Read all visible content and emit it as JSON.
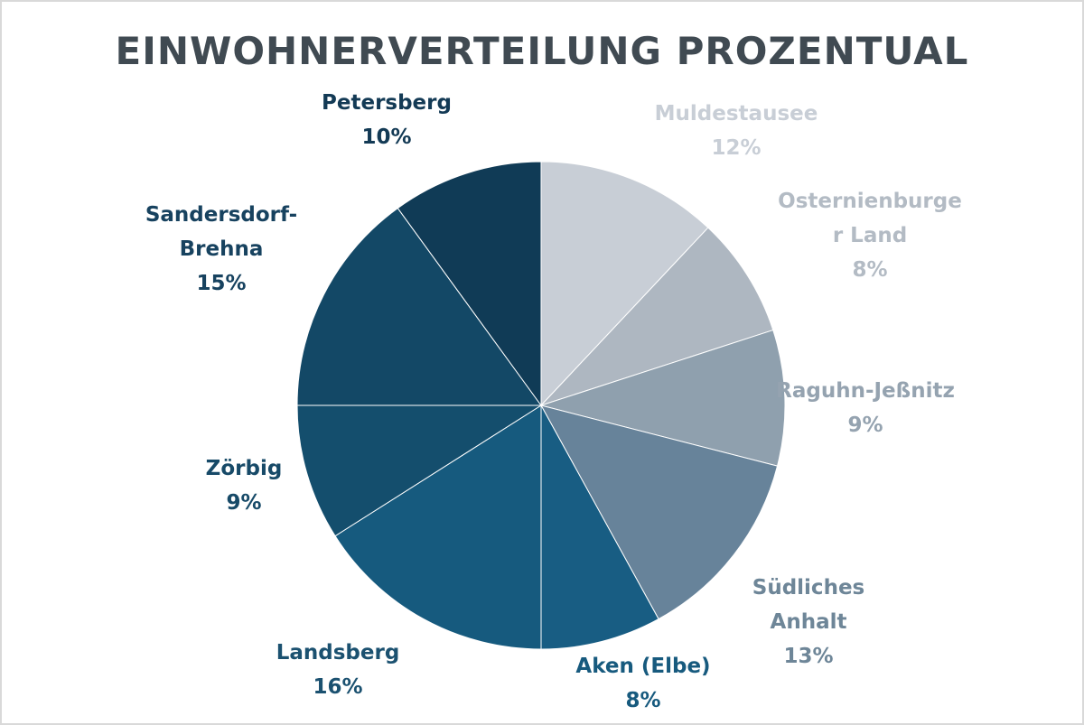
{
  "chart_data": {
    "type": "pie",
    "title": "EINWOHNERVERTEILUNG PROZENTUAL",
    "start_angle_deg": 0,
    "direction": "clockwise",
    "slices": [
      {
        "name": "Muldestausee",
        "display_name": "Muldestausee",
        "value": 12,
        "label": "12%",
        "color": "#c8ced6",
        "label_color": "#c8ced6"
      },
      {
        "name": "Osternienburger Land",
        "display_name": "Osternienburge\nr Land",
        "value": 8,
        "label": "8%",
        "color": "#aeb7c1",
        "label_color": "#b3bbc4"
      },
      {
        "name": "Raguhn-Jeßnitz",
        "display_name": "Raguhn-Jeßnitz",
        "value": 9,
        "label": "9%",
        "color": "#8fa0ae",
        "label_color": "#95a3b0"
      },
      {
        "name": "Südliches Anhalt",
        "display_name": "Südliches\nAnhalt",
        "value": 13,
        "label": "13%",
        "color": "#67839a",
        "label_color": "#6e8698"
      },
      {
        "name": "Aken (Elbe)",
        "display_name": "Aken (Elbe)",
        "value": 8,
        "label": "8%",
        "color": "#185d83",
        "label_color": "#175a7e"
      },
      {
        "name": "Landsberg",
        "display_name": "Landsberg",
        "value": 16,
        "label": "16%",
        "color": "#165a7e",
        "label_color": "#1b5170"
      },
      {
        "name": "Zörbig",
        "display_name": "Zörbig",
        "value": 9,
        "label": "9%",
        "color": "#144e6d",
        "label_color": "#174a68"
      },
      {
        "name": "Sandersdorf-Brehna",
        "display_name": "Sandersdorf-\nBrehna",
        "value": 15,
        "label": "15%",
        "color": "#134866",
        "label_color": "#17425f"
      },
      {
        "name": "Petersberg",
        "display_name": "Petersberg",
        "value": 10,
        "label": "10%",
        "color": "#103b56",
        "label_color": "#133a55"
      }
    ]
  }
}
